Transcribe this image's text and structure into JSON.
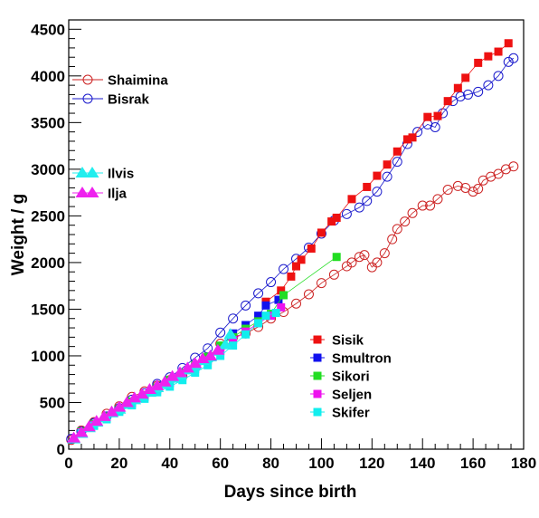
{
  "chart_data": {
    "type": "scatter",
    "xlabel": "Days since birth",
    "ylabel": "Weight / g",
    "xlim": [
      0,
      180
    ],
    "ylim": [
      0,
      4600
    ],
    "x_ticks": [
      0,
      20,
      40,
      60,
      80,
      100,
      120,
      140,
      160,
      180
    ],
    "y_ticks": [
      0,
      500,
      1000,
      1500,
      2000,
      2500,
      3000,
      3500,
      4000,
      4500
    ],
    "grid": false,
    "legends": [
      {
        "position": "top-left",
        "entries": [
          "Shaimina",
          "Bisrak"
        ]
      },
      {
        "position": "middle-left",
        "entries": [
          "Ilvis",
          "Ilja"
        ]
      },
      {
        "position": "bottom-right",
        "entries": [
          "Sisik",
          "Smultron",
          "Sikori",
          "Seljen",
          "Skifer"
        ]
      }
    ],
    "series": [
      {
        "name": "Shaimina",
        "marker": "open-circle",
        "color": "#cc2222",
        "line": true,
        "x": [
          1,
          5,
          10,
          15,
          20,
          25,
          30,
          35,
          40,
          45,
          50,
          55,
          60,
          65,
          70,
          75,
          80,
          85,
          90,
          95,
          100,
          105,
          110,
          112,
          115,
          117,
          120,
          122,
          125,
          128,
          130,
          133,
          136,
          140,
          143,
          146,
          150,
          154,
          157,
          160,
          162,
          164,
          167,
          170,
          173,
          176
        ],
        "y": [
          100,
          200,
          290,
          380,
          460,
          560,
          620,
          680,
          740,
          780,
          870,
          970,
          1130,
          1200,
          1240,
          1310,
          1400,
          1470,
          1560,
          1660,
          1780,
          1870,
          1960,
          2000,
          2060,
          2080,
          1950,
          2000,
          2100,
          2250,
          2360,
          2440,
          2530,
          2610,
          2610,
          2680,
          2780,
          2820,
          2800,
          2760,
          2790,
          2880,
          2920,
          2950,
          3000,
          3030
        ]
      },
      {
        "name": "Bisrak",
        "marker": "open-circle",
        "color": "#1a1acc",
        "line": true,
        "x": [
          1,
          5,
          10,
          15,
          20,
          25,
          30,
          35,
          40,
          45,
          50,
          55,
          60,
          65,
          70,
          75,
          80,
          85,
          90,
          95,
          100,
          105,
          110,
          115,
          118,
          122,
          126,
          130,
          134,
          138,
          142,
          145,
          148,
          152,
          155,
          158,
          162,
          166,
          170,
          174,
          176
        ],
        "y": [
          110,
          190,
          280,
          350,
          440,
          530,
          600,
          700,
          770,
          870,
          980,
          1080,
          1250,
          1400,
          1540,
          1670,
          1790,
          1930,
          2040,
          2160,
          2310,
          2450,
          2520,
          2590,
          2660,
          2760,
          2920,
          3080,
          3270,
          3400,
          3480,
          3450,
          3600,
          3730,
          3780,
          3800,
          3830,
          3900,
          4000,
          4150,
          4190
        ]
      },
      {
        "name": "Sisik",
        "marker": "filled-square",
        "color": "#ee1111",
        "line": true,
        "x": [
          78,
          84,
          88,
          90,
          92,
          96,
          100,
          104,
          106,
          112,
          118,
          122,
          126,
          130,
          134,
          136,
          142,
          146,
          150,
          154,
          157,
          162,
          166,
          170,
          174
        ],
        "y": [
          1580,
          1700,
          1850,
          1960,
          2030,
          2150,
          2320,
          2440,
          2480,
          2680,
          2810,
          2930,
          3050,
          3190,
          3320,
          3340,
          3560,
          3570,
          3730,
          3870,
          3980,
          4140,
          4210,
          4260,
          4350
        ]
      },
      {
        "name": "Smultron",
        "marker": "filled-square",
        "color": "#1111ee",
        "line": true,
        "x": [
          5,
          10,
          15,
          20,
          25,
          30,
          35,
          40,
          45,
          50,
          55,
          60,
          65,
          70,
          75,
          78,
          83
        ],
        "y": [
          190,
          270,
          340,
          420,
          500,
          570,
          650,
          720,
          800,
          880,
          980,
          1100,
          1240,
          1330,
          1430,
          1540,
          1600
        ]
      },
      {
        "name": "Sikori",
        "marker": "filled-square",
        "color": "#22dd22",
        "line": true,
        "x": [
          5,
          10,
          15,
          20,
          25,
          30,
          35,
          40,
          45,
          50,
          55,
          60,
          65,
          70,
          75,
          80,
          85,
          106
        ],
        "y": [
          190,
          270,
          350,
          430,
          510,
          580,
          660,
          740,
          820,
          900,
          990,
          1110,
          1200,
          1290,
          1370,
          1450,
          1650,
          2060
        ]
      },
      {
        "name": "Seljen",
        "marker": "filled-square",
        "color": "#ee11ee",
        "line": true,
        "x": [
          5,
          10,
          15,
          20,
          25,
          30,
          35,
          40,
          45,
          50,
          55,
          60,
          65,
          70,
          75,
          80,
          84
        ],
        "y": [
          180,
          260,
          330,
          410,
          490,
          560,
          640,
          710,
          780,
          860,
          950,
          1060,
          1170,
          1260,
          1350,
          1430,
          1520
        ]
      },
      {
        "name": "Skifer",
        "marker": "filled-square",
        "color": "#11eeee",
        "line": true,
        "x": [
          5,
          10,
          15,
          20,
          25,
          30,
          35,
          40,
          45,
          50,
          55,
          60,
          65,
          70,
          75,
          78,
          82
        ],
        "y": [
          170,
          250,
          320,
          400,
          470,
          540,
          610,
          670,
          740,
          820,
          900,
          1000,
          1110,
          1230,
          1350,
          1430,
          1460
        ]
      },
      {
        "name": "Ilvis",
        "marker": "filled-triangle",
        "color": "#22eeee",
        "line": true,
        "x": [
          2,
          5,
          8,
          11,
          14,
          17,
          20,
          23,
          26,
          29,
          32,
          35,
          38,
          41,
          44,
          47,
          50,
          53,
          56,
          59,
          62,
          64
        ],
        "y": [
          110,
          170,
          230,
          290,
          340,
          390,
          430,
          480,
          530,
          570,
          610,
          660,
          700,
          760,
          800,
          850,
          900,
          950,
          990,
          1050,
          1120,
          1230
        ]
      },
      {
        "name": "Ilja",
        "marker": "filled-triangle",
        "color": "#ee22ee",
        "line": true,
        "x": [
          2,
          5,
          8,
          11,
          14,
          17,
          20,
          23,
          26,
          29,
          32,
          35,
          38,
          41,
          44,
          47,
          50,
          53,
          56,
          59
        ],
        "y": [
          120,
          180,
          240,
          300,
          350,
          400,
          450,
          500,
          550,
          590,
          640,
          680,
          720,
          780,
          820,
          870,
          920,
          970,
          1000,
          1060
        ]
      }
    ]
  }
}
